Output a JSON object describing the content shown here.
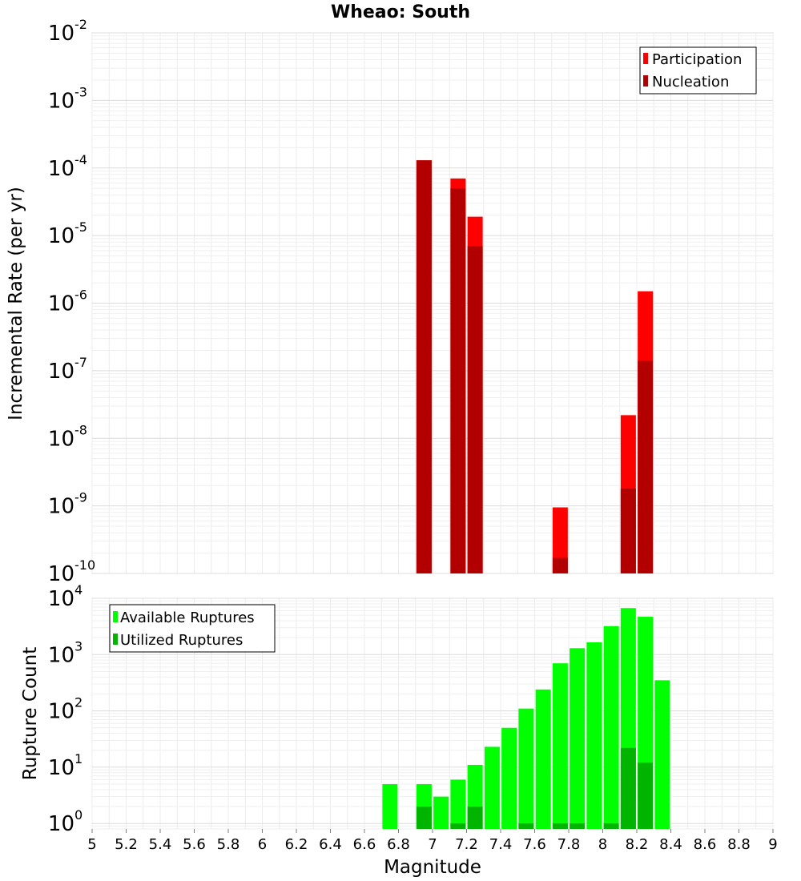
{
  "chart_data": [
    {
      "type": "bar",
      "title": "Wheao: South",
      "ylabel": "Incremental Rate (per yr)",
      "xlabel": "",
      "y_scale": "log",
      "ylim": [
        1e-10,
        0.01
      ],
      "xlim": [
        5,
        9
      ],
      "grid": true,
      "legend_position": "top-right",
      "y_tick_labels": [
        {
          "base": "10",
          "exp": "-10"
        },
        {
          "base": "10",
          "exp": "-9"
        },
        {
          "base": "10",
          "exp": "-8"
        },
        {
          "base": "10",
          "exp": "-7"
        },
        {
          "base": "10",
          "exp": "-6"
        },
        {
          "base": "10",
          "exp": "-5"
        },
        {
          "base": "10",
          "exp": "-4"
        },
        {
          "base": "10",
          "exp": "-3"
        },
        {
          "base": "10",
          "exp": "-2"
        }
      ],
      "series": [
        {
          "name": "Participation",
          "color": "#ff0000",
          "x": [
            6.95,
            7.15,
            7.25,
            7.75,
            8.15,
            8.25
          ],
          "values": [
            0.00013,
            7e-05,
            1.9e-05,
            9.5e-10,
            2.2e-08,
            1.5e-06
          ]
        },
        {
          "name": "Nucleation",
          "color": "#b20000",
          "x": [
            6.95,
            7.15,
            7.25,
            7.75,
            8.15,
            8.25
          ],
          "values": [
            0.00013,
            5e-05,
            7e-06,
            1.7e-10,
            1.8e-09,
            1.4e-07
          ]
        }
      ]
    },
    {
      "type": "bar",
      "title": "",
      "ylabel": "Rupture Count",
      "xlabel": "Magnitude",
      "y_scale": "log",
      "ylim": [
        0.8,
        10000
      ],
      "xlim": [
        5,
        9
      ],
      "grid": true,
      "legend_position": "top-left",
      "x_tick_labels": [
        "5",
        "5.2",
        "5.4",
        "5.6",
        "5.8",
        "6",
        "6.2",
        "6.4",
        "6.6",
        "6.8",
        "7",
        "7.2",
        "7.4",
        "7.6",
        "7.8",
        "8",
        "8.2",
        "8.4",
        "8.6",
        "8.8",
        "9"
      ],
      "y_tick_labels": [
        {
          "base": "10",
          "exp": "0"
        },
        {
          "base": "10",
          "exp": "1"
        },
        {
          "base": "10",
          "exp": "2"
        },
        {
          "base": "10",
          "exp": "3"
        },
        {
          "base": "10",
          "exp": "4"
        }
      ],
      "series": [
        {
          "name": "Available Ruptures",
          "color": "#00ff00",
          "x": [
            6.75,
            6.95,
            7.05,
            7.15,
            7.25,
            7.35,
            7.45,
            7.55,
            7.65,
            7.75,
            7.85,
            7.95,
            8.05,
            8.15,
            8.25,
            8.35
          ],
          "values": [
            5,
            5,
            3,
            6,
            11,
            23,
            50,
            110,
            240,
            700,
            1300,
            1650,
            3200,
            6700,
            4700,
            350
          ]
        },
        {
          "name": "Utilized Ruptures",
          "color": "#00b400",
          "x": [
            6.95,
            7.15,
            7.25,
            7.55,
            7.75,
            7.85,
            8.05,
            8.15,
            8.25
          ],
          "values": [
            2,
            1,
            2,
            1,
            1,
            1,
            1,
            22,
            12
          ]
        }
      ]
    }
  ]
}
